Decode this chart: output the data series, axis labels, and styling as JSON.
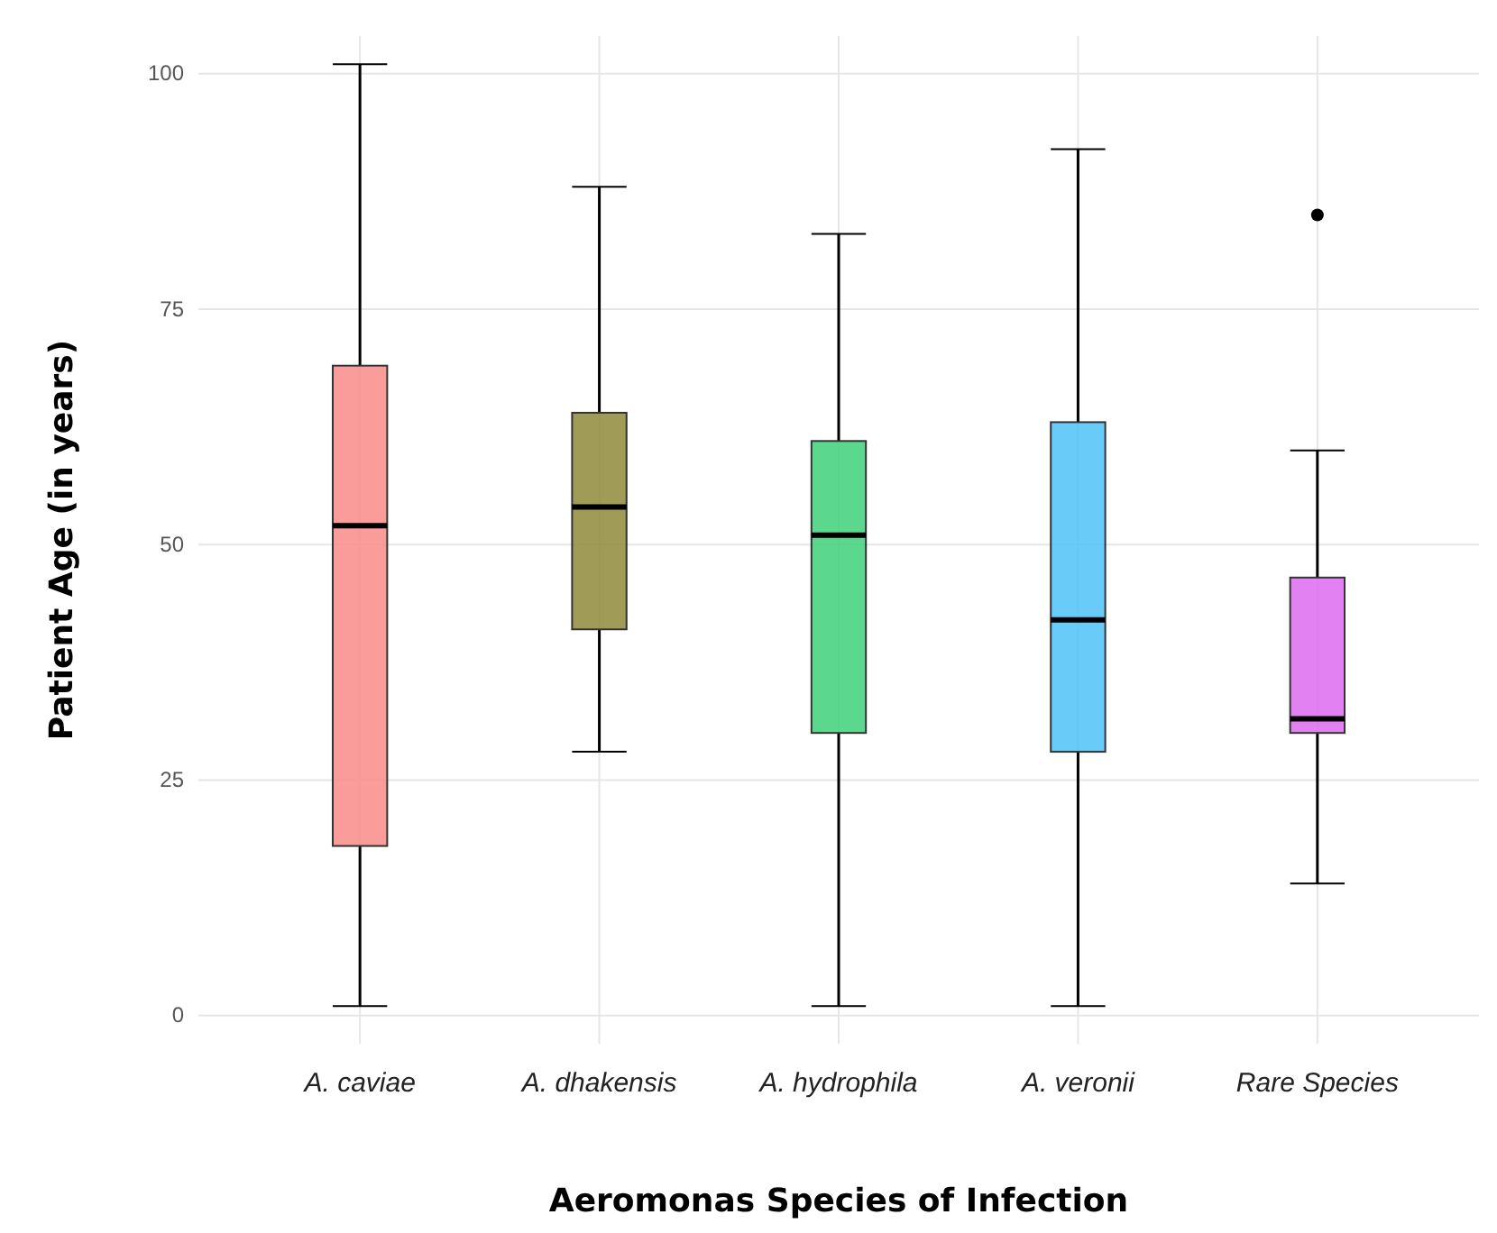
{
  "chart_data": {
    "type": "box",
    "xlabel": "Aeromonas Species of Infection",
    "ylabel": "Patient Age (in years)",
    "categories": [
      "A. caviae",
      "A. dhakensis",
      "A. hydrophila",
      "A. veronii",
      "Rare Species"
    ],
    "colors": [
      "#f98b87",
      "#8f8a3a",
      "#3fd17a",
      "#4fc3f7",
      "#dd6cf0"
    ],
    "boxes": [
      {
        "low": 1,
        "q1": 18,
        "median": 52,
        "q3": 69,
        "high": 101
      },
      {
        "low": 28,
        "q1": 41,
        "median": 54,
        "q3": 64,
        "high": 88
      },
      {
        "low": 1,
        "q1": 30,
        "median": 51,
        "q3": 61,
        "high": 83
      },
      {
        "low": 1,
        "q1": 28,
        "median": 42,
        "q3": 63,
        "high": 92
      },
      {
        "low": 14,
        "q1": 30,
        "median": 31.5,
        "q3": 46.5,
        "high": 60,
        "outliers": [
          85
        ]
      }
    ],
    "ylim": [
      -3,
      104
    ],
    "yticks": [
      0,
      25,
      50,
      75,
      100
    ],
    "grid": true
  }
}
